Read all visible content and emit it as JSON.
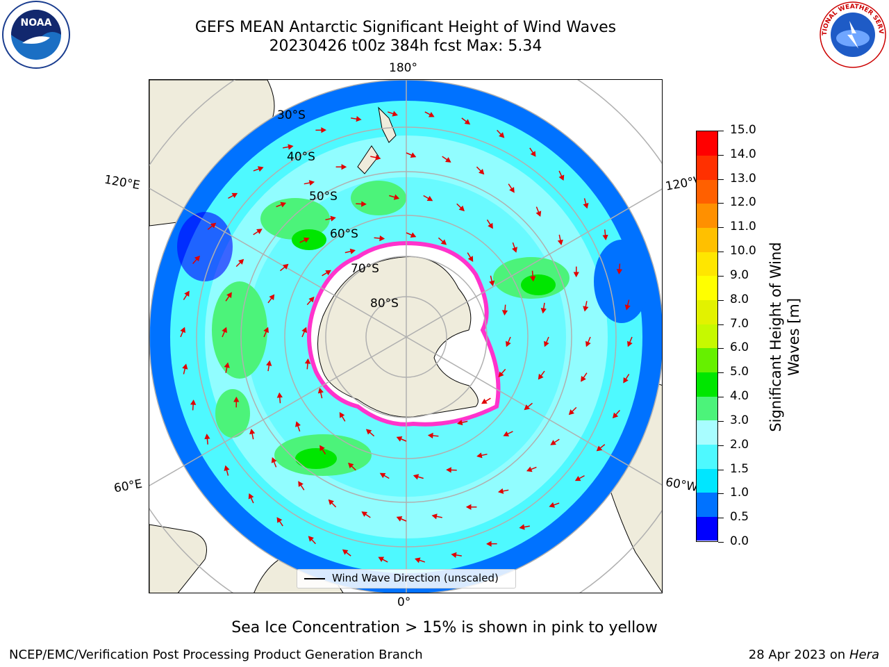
{
  "title": {
    "line1": "GEFS MEAN Antarctic Significant Height of Wind Waves",
    "line2": "20230426 t00z 384h fcst   Max: 5.34"
  },
  "map": {
    "projection": "south-polar-stereographic",
    "longitude_labels": {
      "top": "180°",
      "bottom": "0°",
      "upper_left": "120°E",
      "upper_right": "120°W",
      "lower_left": "60°E",
      "lower_right": "60°W"
    },
    "latitude_labels": [
      "30°S",
      "40°S",
      "50°S",
      "60°S",
      "70°S",
      "80°S"
    ],
    "wave_arrow_color": "#e00000",
    "land_color": "#efecdc"
  },
  "legend": {
    "label": "Wind Wave Direction (unscaled)"
  },
  "colorbar": {
    "title_line1": "Significant Height of Wind",
    "title_line2": "Waves [m]",
    "ticks": [
      "0.0",
      "0.5",
      "1.0",
      "1.5",
      "2.0",
      "3.0",
      "4.0",
      "5.0",
      "6.0",
      "7.0",
      "8.0",
      "9.0",
      "10.0",
      "11.0",
      "12.0",
      "13.0",
      "14.0",
      "15.0"
    ],
    "colors": [
      "#0000ff",
      "#0072ff",
      "#00e6ff",
      "#4ef9ff",
      "#a8fdff",
      "#4cf37a",
      "#00e600",
      "#66f000",
      "#c6f900",
      "#e2f200",
      "#ffff00",
      "#ffe600",
      "#ffc000",
      "#ff9000",
      "#ff6000",
      "#ff3000",
      "#ff0000"
    ]
  },
  "note": "Sea Ice Concentration > 15% is shown in pink to yellow",
  "footer": {
    "left": "NCEP/EMC/Verification Post Processing Product Generation Branch",
    "right_date": "28 Apr 2023 on ",
    "right_host": "Hera"
  },
  "logos": {
    "noaa_text": "NOAA",
    "nws_text": "NATIONAL WEATHER SERVICE"
  }
}
